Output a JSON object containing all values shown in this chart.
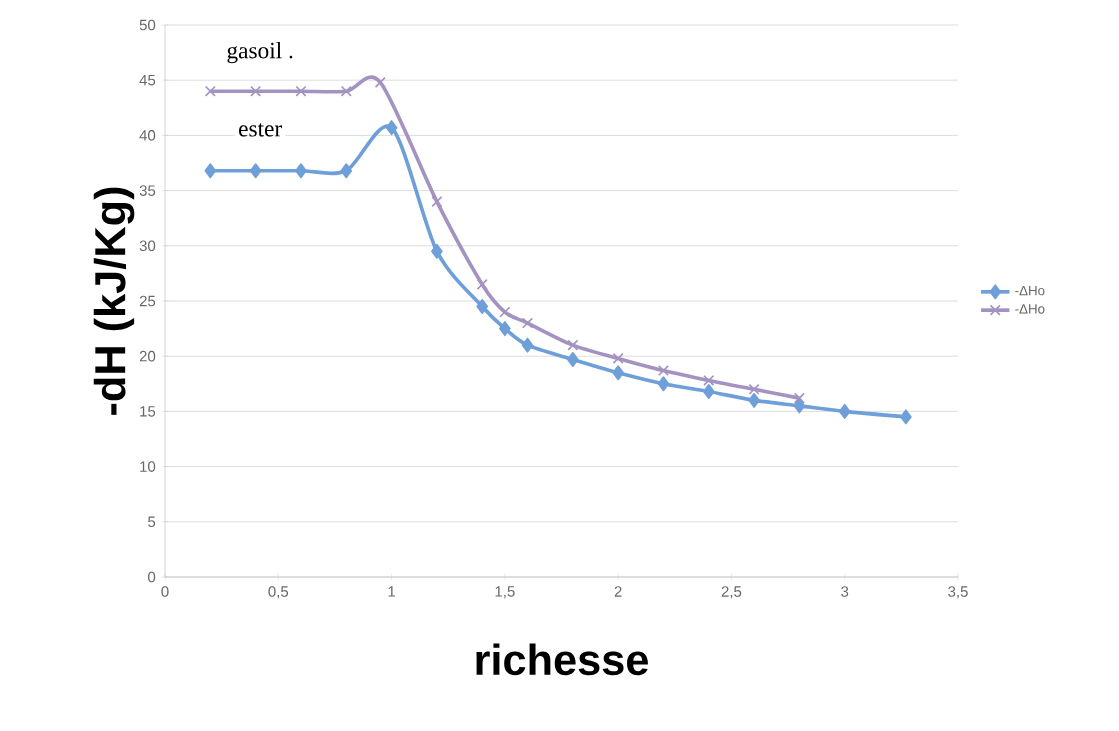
{
  "chart_data": {
    "type": "line",
    "xlabel": "richesse",
    "ylabel": "-dH (kJ/Kg)",
    "x": [
      0.2,
      0.4,
      0.6,
      0.8,
      1.0,
      1.2,
      1.4,
      1.5,
      1.6,
      1.8,
      2.0,
      2.2,
      2.4,
      2.6,
      2.8,
      3.0,
      3.27
    ],
    "series": [
      {
        "name": "-ΔHo",
        "color": "#6f9fd8",
        "marker": "diamond",
        "values": [
          36.8,
          36.8,
          36.8,
          36.8,
          40.7,
          29.5,
          24.5,
          22.5,
          21,
          19.7,
          18.5,
          17.5,
          16.8,
          16,
          15.5,
          15,
          14.5
        ]
      },
      {
        "name": "-ΔHo",
        "color": "#a392c2",
        "marker": "cross",
        "x": [
          0.2,
          0.4,
          0.6,
          0.8,
          0.95,
          1.2,
          1.4,
          1.5,
          1.6,
          1.8,
          2.0,
          2.2,
          2.4,
          2.6,
          2.8
        ],
        "values": [
          44,
          44,
          44,
          44,
          44.8,
          34,
          26.5,
          24,
          23,
          21,
          19.8,
          18.7,
          17.8,
          17,
          16.2
        ]
      }
    ],
    "annotations": [
      "gasoil .",
      "ester"
    ],
    "xlim": [
      0,
      3.5
    ],
    "ylim": [
      0,
      50
    ],
    "xticks": [
      0,
      {
        "value": 0.5,
        "label": "0,5"
      },
      1,
      {
        "value": 1.5,
        "label": "1,5"
      },
      2,
      {
        "value": 2.5,
        "label": "2,5"
      },
      3,
      {
        "value": 3.5,
        "label": "3,5"
      }
    ],
    "yticks": [
      0,
      5,
      10,
      15,
      20,
      25,
      30,
      35,
      40,
      45,
      50
    ],
    "grid": "y",
    "legend": "right",
    "line_style": "solid"
  }
}
